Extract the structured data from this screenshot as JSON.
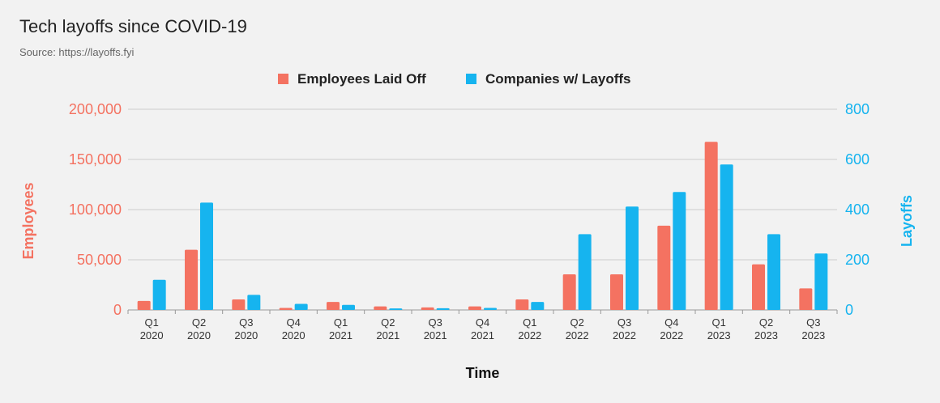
{
  "chart_data": {
    "type": "bar",
    "title": "Tech layoffs since COVID-19",
    "subtitle": "Source: https://layoffs.fyi",
    "xlabel": "Time",
    "ylabel_left": "Employees",
    "ylabel_right": "Layoffs",
    "legend_position": "top-center",
    "grid": true,
    "categories": [
      [
        "Q1",
        "2020"
      ],
      [
        "Q2",
        "2020"
      ],
      [
        "Q3",
        "2020"
      ],
      [
        "Q4",
        "2020"
      ],
      [
        "Q1",
        "2021"
      ],
      [
        "Q2",
        "2021"
      ],
      [
        "Q3",
        "2021"
      ],
      [
        "Q4",
        "2021"
      ],
      [
        "Q1",
        "2022"
      ],
      [
        "Q2",
        "2022"
      ],
      [
        "Q3",
        "2022"
      ],
      [
        "Q4",
        "2022"
      ],
      [
        "Q1",
        "2023"
      ],
      [
        "Q2",
        "2023"
      ],
      [
        "Q3",
        "2023"
      ]
    ],
    "y_left": {
      "lim": [
        0,
        200000
      ],
      "ticks": [
        0,
        50000,
        100000,
        150000,
        200000
      ],
      "tick_labels": [
        "0",
        "50,000",
        "100,000",
        "150,000",
        "200,000"
      ]
    },
    "y_right": {
      "lim": [
        0,
        800
      ],
      "ticks": [
        0,
        200,
        400,
        600,
        800
      ],
      "tick_labels": [
        "0",
        "200",
        "400",
        "600",
        "800"
      ]
    },
    "series": [
      {
        "name": "Employees Laid Off",
        "axis": "left",
        "color": "#f47261",
        "values": [
          9000,
          60000,
          10500,
          2000,
          8000,
          3500,
          2500,
          3500,
          10500,
          35500,
          35500,
          84000,
          167500,
          45500,
          21500
        ]
      },
      {
        "name": "Companies w/ Layoffs",
        "axis": "right",
        "color": "#16b4ef",
        "values": [
          120,
          428,
          60,
          24,
          20,
          6,
          7,
          8,
          32,
          302,
          412,
          470,
          580,
          302,
          225
        ]
      }
    ],
    "colors": {
      "left_axis": "#f47261",
      "right_axis": "#16b4ef",
      "grid": "#cccccc"
    }
  }
}
